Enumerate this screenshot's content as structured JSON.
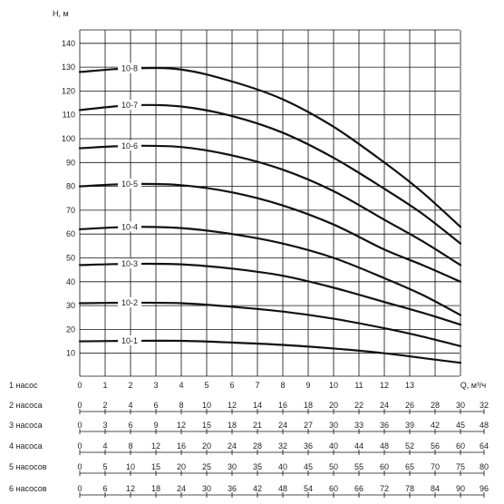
{
  "chart_data": {
    "type": "line",
    "ylabel": "H, м",
    "xlabel": "Q, м³/ч",
    "ylim": [
      0,
      145
    ],
    "y_ticks": [
      10,
      20,
      30,
      40,
      50,
      60,
      70,
      80,
      90,
      100,
      110,
      120,
      130,
      140
    ],
    "xlim": [
      0,
      15
    ],
    "x_ticks_labels": [
      "0",
      "1",
      "2",
      "3",
      "4",
      "5",
      "6",
      "7",
      "8",
      "9",
      "10",
      "11",
      "12",
      "13"
    ],
    "grid": true,
    "series": [
      {
        "name": "10-1",
        "points": [
          [
            0,
            15
          ],
          [
            2,
            15.2
          ],
          [
            4,
            15.2
          ],
          [
            6,
            14.5
          ],
          [
            8,
            13.5
          ],
          [
            10,
            12
          ],
          [
            12,
            10
          ],
          [
            13.5,
            8
          ],
          [
            15,
            6
          ]
        ]
      },
      {
        "name": "10-2",
        "points": [
          [
            0,
            31
          ],
          [
            2,
            31.2
          ],
          [
            4,
            31
          ],
          [
            6,
            29.5
          ],
          [
            8,
            27.5
          ],
          [
            10,
            24.5
          ],
          [
            12,
            20.5
          ],
          [
            13.5,
            17
          ],
          [
            15,
            13
          ]
        ]
      },
      {
        "name": "10-3",
        "points": [
          [
            0,
            47
          ],
          [
            2,
            47.5
          ],
          [
            4,
            47.3
          ],
          [
            6,
            45.5
          ],
          [
            8,
            42.5
          ],
          [
            10,
            37.5
          ],
          [
            12,
            31.5
          ],
          [
            13.5,
            27
          ],
          [
            15,
            22
          ]
        ]
      },
      {
        "name": "10-4",
        "points": [
          [
            0,
            62
          ],
          [
            2,
            63
          ],
          [
            4,
            62.5
          ],
          [
            6,
            60
          ],
          [
            8,
            56
          ],
          [
            10,
            50
          ],
          [
            12,
            41.5
          ],
          [
            13.5,
            34.5
          ],
          [
            15,
            26
          ]
        ]
      },
      {
        "name": "10-5",
        "points": [
          [
            0,
            80
          ],
          [
            2,
            81
          ],
          [
            4,
            80.5
          ],
          [
            6,
            77.5
          ],
          [
            8,
            72
          ],
          [
            10,
            64
          ],
          [
            12,
            53.5
          ],
          [
            13.5,
            47
          ],
          [
            15,
            40
          ]
        ]
      },
      {
        "name": "10-6",
        "points": [
          [
            0,
            96
          ],
          [
            2,
            97
          ],
          [
            4,
            96.5
          ],
          [
            6,
            93
          ],
          [
            8,
            87
          ],
          [
            10,
            78
          ],
          [
            12,
            66
          ],
          [
            13.5,
            57
          ],
          [
            15,
            47
          ]
        ]
      },
      {
        "name": "10-7",
        "points": [
          [
            0,
            112
          ],
          [
            2,
            114
          ],
          [
            4,
            113.5
          ],
          [
            6,
            109.5
          ],
          [
            8,
            102.5
          ],
          [
            10,
            92
          ],
          [
            12,
            79
          ],
          [
            13.5,
            68.5
          ],
          [
            15,
            56
          ]
        ]
      },
      {
        "name": "10-8",
        "points": [
          [
            0,
            128
          ],
          [
            2,
            129.5
          ],
          [
            4,
            129
          ],
          [
            6,
            124
          ],
          [
            8,
            116.5
          ],
          [
            10,
            105
          ],
          [
            12,
            90
          ],
          [
            13.5,
            77.5
          ],
          [
            15,
            63
          ]
        ]
      }
    ],
    "x_axes": [
      {
        "label": "1 насос",
        "ticks": [
          "0",
          "1",
          "2",
          "3",
          "4",
          "5",
          "6",
          "7",
          "8",
          "9",
          "10",
          "11",
          "12",
          "13"
        ],
        "extra": [
          "Q, м³/ч"
        ]
      },
      {
        "label": "2 насоса",
        "ticks": [
          "0",
          "2",
          "4",
          "6",
          "8",
          "10",
          "12",
          "14",
          "16",
          "18",
          "20",
          "22",
          "24",
          "26",
          "28",
          "30"
        ],
        "extra": [
          "32"
        ]
      },
      {
        "label": "3 насоса",
        "ticks": [
          "0",
          "3",
          "6",
          "9",
          "12",
          "15",
          "18",
          "21",
          "24",
          "27",
          "30",
          "33",
          "36",
          "39",
          "42",
          "45"
        ],
        "extra": [
          "48"
        ]
      },
      {
        "label": "4 насоса",
        "ticks": [
          "0",
          "4",
          "8",
          "12",
          "16",
          "20",
          "24",
          "28",
          "32",
          "36",
          "40",
          "44",
          "48",
          "52",
          "56",
          "60"
        ],
        "extra": [
          "64"
        ]
      },
      {
        "label": "5 насосов",
        "ticks": [
          "0",
          "5",
          "10",
          "15",
          "20",
          "25",
          "30",
          "35",
          "40",
          "45",
          "50",
          "55",
          "60",
          "65",
          "70",
          "75"
        ],
        "extra": [
          "80"
        ]
      },
      {
        "label": "6 насосов",
        "ticks": [
          "0",
          "6",
          "12",
          "18",
          "24",
          "30",
          "36",
          "42",
          "48",
          "54",
          "60",
          "66",
          "72",
          "78",
          "84",
          "90"
        ],
        "extra": [
          "96"
        ]
      }
    ]
  }
}
